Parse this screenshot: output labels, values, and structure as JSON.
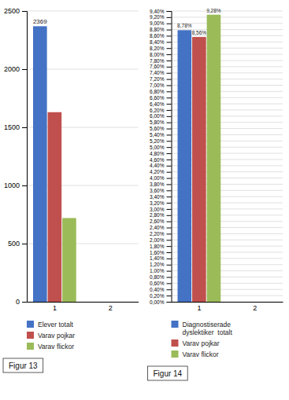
{
  "chart_data": [
    {
      "type": "bar",
      "categories": [
        1,
        2
      ],
      "series": [
        {
          "name": "Elever totalt",
          "color": "#4472C4",
          "values": [
            2369,
            0
          ],
          "value_labels": [
            "2369",
            null
          ]
        },
        {
          "name": "Varav pojkar",
          "color": "#C0504D",
          "values": [
            1630,
            0
          ]
        },
        {
          "name": "Varav flickor",
          "color": "#9BBB59",
          "values": [
            720,
            0
          ]
        }
      ],
      "ylim": [
        0,
        2500
      ],
      "yticks": [
        0,
        500,
        1000,
        1500,
        2000,
        2500
      ],
      "grid": true,
      "legend": "bottom",
      "annotations": [
        "Figur 13"
      ]
    },
    {
      "type": "bar",
      "categories": [
        1,
        2
      ],
      "series": [
        {
          "name": "Diagnostiserade\ndyslektiker  totalt",
          "color": "#4472C4",
          "values": [
            8.78,
            0
          ],
          "value_labels": [
            "8,78%",
            null
          ]
        },
        {
          "name": "Varav pojkar",
          "color": "#C0504D",
          "values": [
            8.56,
            0
          ],
          "value_labels": [
            "8,56%",
            null
          ]
        },
        {
          "name": "Varav flickor",
          "color": "#9BBB59",
          "values": [
            9.28,
            0
          ],
          "value_labels": [
            "9,28%",
            null
          ]
        }
      ],
      "ylim": [
        0,
        9.4
      ],
      "yticks": [
        {
          "value": 0,
          "label": "0,00%"
        },
        {
          "value": 0.2,
          "label": "0,20%"
        },
        {
          "value": 0.4,
          "label": "0,40%"
        },
        {
          "value": 0.6,
          "label": "0,60%"
        },
        {
          "value": 0.8,
          "label": "0,80%"
        },
        {
          "value": 1,
          "label": "1,00%"
        },
        {
          "value": 1.2,
          "label": "1,20%"
        },
        {
          "value": 1.4,
          "label": "1,40%"
        },
        {
          "value": 1.6,
          "label": "1,60%"
        },
        {
          "value": 1.8,
          "label": "1,80%"
        },
        {
          "value": 2,
          "label": "2,00%"
        },
        {
          "value": 2.2,
          "label": "2,20%"
        },
        {
          "value": 2.4,
          "label": "2,40%"
        },
        {
          "value": 2.6,
          "label": "2,60%"
        },
        {
          "value": 2.8,
          "label": "2,80%"
        },
        {
          "value": 3,
          "label": "3,00%"
        },
        {
          "value": 3.2,
          "label": "3,20%"
        },
        {
          "value": 3.4,
          "label": "3,40%"
        },
        {
          "value": 3.6,
          "label": "3,60%"
        },
        {
          "value": 3.8,
          "label": "3,80%"
        },
        {
          "value": 4,
          "label": "4,00%"
        },
        {
          "value": 4.2,
          "label": "4,20%"
        },
        {
          "value": 4.4,
          "label": "4,40%"
        },
        {
          "value": 4.6,
          "label": "4,60%"
        },
        {
          "value": 4.8,
          "label": "4,80%"
        },
        {
          "value": 5,
          "label": "5,00%"
        },
        {
          "value": 5.2,
          "label": "5,20%"
        },
        {
          "value": 5.4,
          "label": "5,40%"
        },
        {
          "value": 5.6,
          "label": "5,60%"
        },
        {
          "value": 5.8,
          "label": "5,80%"
        },
        {
          "value": 6,
          "label": "6,00%"
        },
        {
          "value": 6.2,
          "label": "6,20%"
        },
        {
          "value": 6.4,
          "label": "6,40%"
        },
        {
          "value": 6.6,
          "label": "6,60%"
        },
        {
          "value": 6.8,
          "label": "6,80%"
        },
        {
          "value": 7,
          "label": "7,00%"
        },
        {
          "value": 7.2,
          "label": "7,20%"
        },
        {
          "value": 7.4,
          "label": "7,40%"
        },
        {
          "value": 7.6,
          "label": "7,60%"
        },
        {
          "value": 7.8,
          "label": "7,80%"
        },
        {
          "value": 8,
          "label": "8,00%"
        },
        {
          "value": 8.2,
          "label": "8,20%"
        },
        {
          "value": 8.4,
          "label": "8,40%"
        },
        {
          "value": 8.6,
          "label": "8,60%"
        },
        {
          "value": 8.8,
          "label": "8,80%"
        },
        {
          "value": 9,
          "label": "9,00%"
        },
        {
          "value": 9.2,
          "label": "9,20%"
        },
        {
          "value": 9.4,
          "label": "9,40%"
        }
      ],
      "grid": true,
      "legend": "bottom",
      "annotations": [
        "Figur 14"
      ]
    }
  ]
}
